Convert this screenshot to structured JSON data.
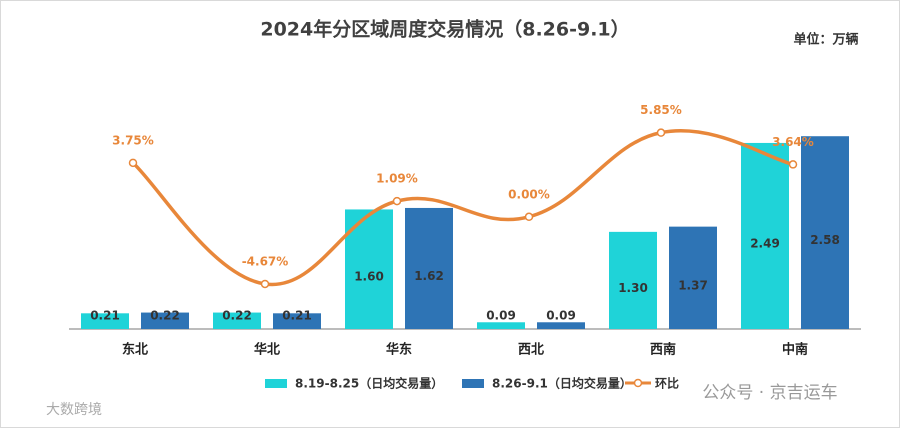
{
  "chart_data": {
    "type": "bar-line",
    "title": "2024年分区域周度交易情况（8.26-9.1）",
    "unit": "单位：万辆",
    "categories": [
      "东北",
      "华北",
      "华东",
      "西北",
      "西南",
      "中南"
    ],
    "series": [
      {
        "name": "8.19-8.25（日均交易量）",
        "type": "bar",
        "color": "#1fd3d8",
        "values": [
          0.21,
          0.22,
          1.6,
          0.09,
          1.3,
          2.49
        ],
        "value_labels": [
          "0.21",
          "0.22",
          "1.60",
          "0.09",
          "1.30",
          "2.49"
        ]
      },
      {
        "name": "8.26-9.1（日均交易量）",
        "type": "bar",
        "color": "#2e74b5",
        "values": [
          0.22,
          0.21,
          1.62,
          0.09,
          1.37,
          2.58
        ],
        "value_labels": [
          "0.22",
          "0.21",
          "1.62",
          "0.09",
          "1.37",
          "2.58"
        ]
      },
      {
        "name": "环比",
        "type": "line",
        "axis": "y2",
        "color": "#e8873a",
        "values": [
          3.75,
          -4.67,
          1.09,
          0.0,
          5.85,
          3.64
        ],
        "value_labels": [
          "3.75%",
          "-4.67%",
          "1.09%",
          "0.00%",
          "5.85%",
          "3.64%"
        ]
      }
    ],
    "ylim": [
      0,
      3.6
    ],
    "y2lim": [
      -7.8,
      10.9
    ],
    "watermarks": [
      "大数跨境",
      "公众号 · 京吉运车"
    ]
  }
}
